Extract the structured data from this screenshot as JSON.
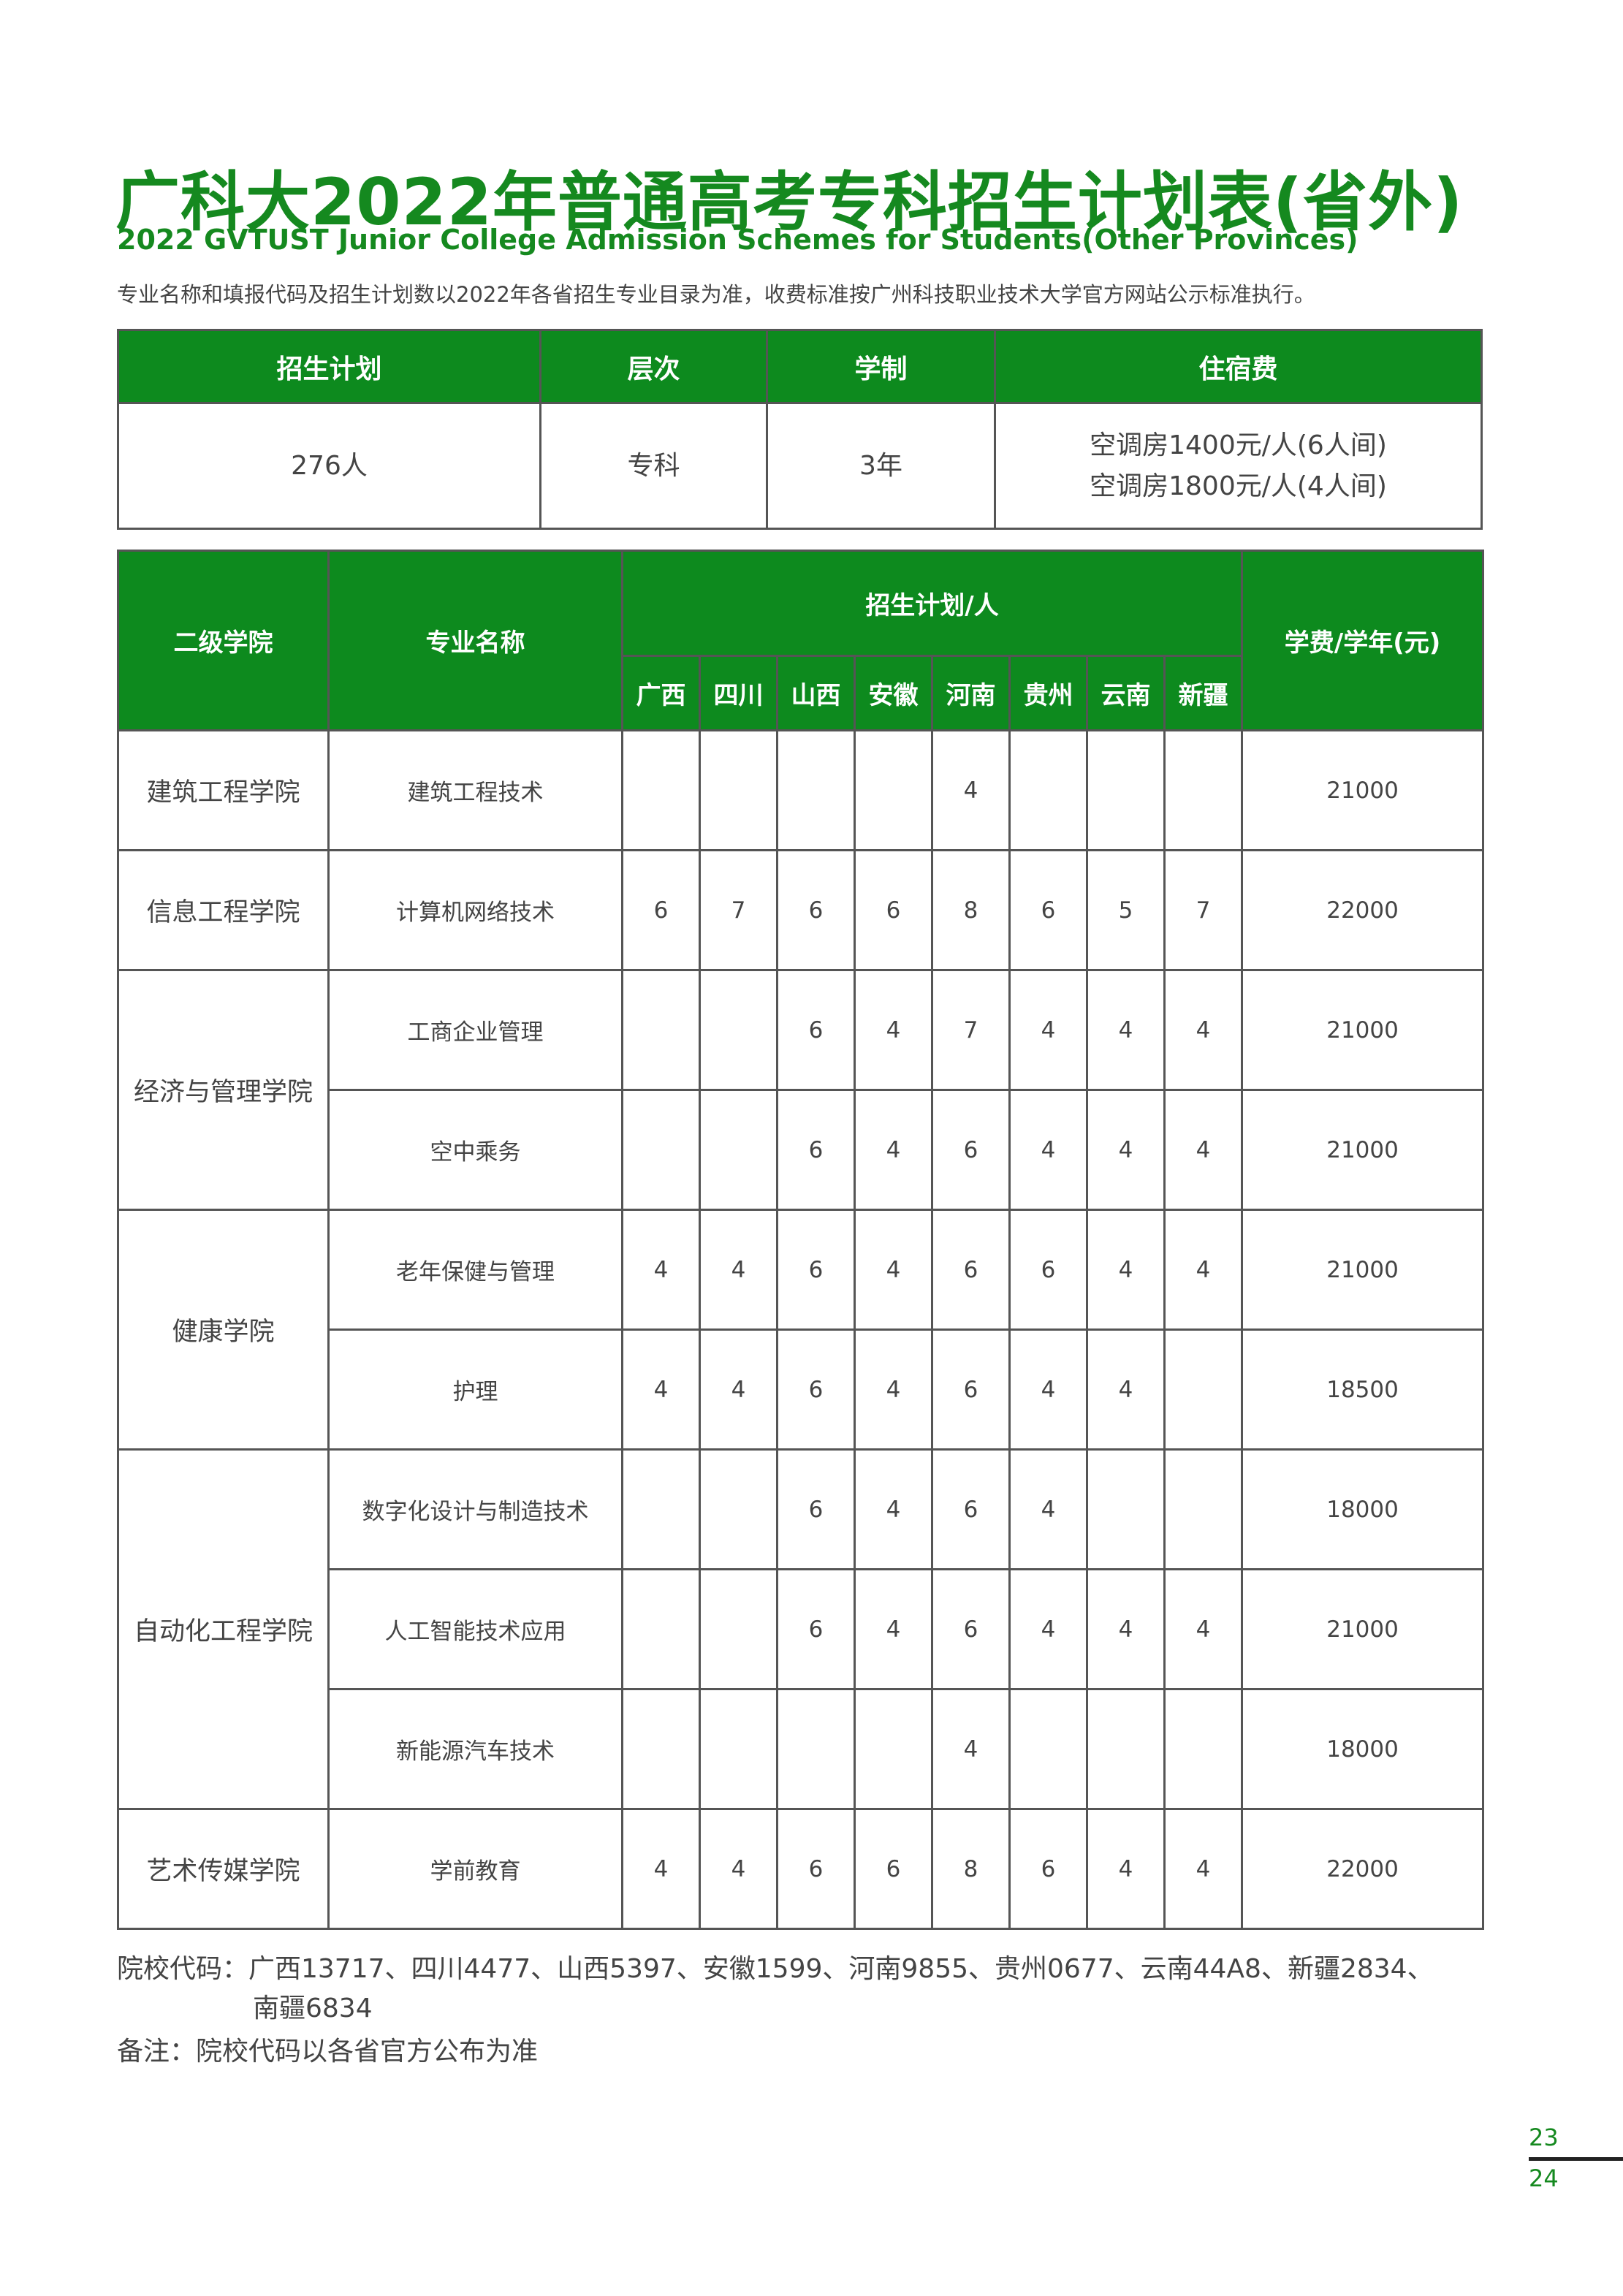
{
  "title": "广科大2022年普通高考专科招生计划表(省外)",
  "subtitle": "2022 GVTUST Junior College Admission Schemes for Students(Other Provinces)",
  "note": "专业名称和填报代码及招生计划数以2022年各省招生专业目录为准，收费标准按广州科技职业技术大学官方网站公示标准执行。",
  "summary": {
    "headers": [
      "招生计划",
      "层次",
      "学制",
      "住宿费"
    ],
    "values": {
      "plan": "276人",
      "level": "专科",
      "duration": "3年",
      "dorm1": "空调房1400元/人(6人间)",
      "dorm2": "空调房1800元/人(4人间)"
    }
  },
  "plan_table": {
    "headers": {
      "college": "二级学院",
      "major": "专业名称",
      "plan": "招生计划/人",
      "fee": "学费/学年(元)"
    },
    "provinces": [
      "广西",
      "四川",
      "山西",
      "安徽",
      "河南",
      "贵州",
      "云南",
      "新疆"
    ],
    "rows": [
      {
        "college": "建筑工程学院",
        "major": "建筑工程技术",
        "counts": [
          "",
          "",
          "",
          "",
          "4",
          "",
          "",
          ""
        ],
        "fee": "21000"
      },
      {
        "college": "信息工程学院",
        "major": "计算机网络技术",
        "counts": [
          "6",
          "7",
          "6",
          "6",
          "8",
          "6",
          "5",
          "7"
        ],
        "fee": "22000"
      },
      {
        "college": "经济与管理学院",
        "major": "工商企业管理",
        "counts": [
          "",
          "",
          "6",
          "4",
          "7",
          "4",
          "4",
          "4"
        ],
        "fee": "21000"
      },
      {
        "college": "",
        "major": "空中乘务",
        "counts": [
          "",
          "",
          "6",
          "4",
          "6",
          "4",
          "4",
          "4"
        ],
        "fee": "21000"
      },
      {
        "college": "健康学院",
        "major": "老年保健与管理",
        "counts": [
          "4",
          "4",
          "6",
          "4",
          "6",
          "6",
          "4",
          "4"
        ],
        "fee": "21000"
      },
      {
        "college": "",
        "major": "护理",
        "counts": [
          "4",
          "4",
          "6",
          "4",
          "6",
          "4",
          "4",
          ""
        ],
        "fee": "18500"
      },
      {
        "college": "自动化工程学院",
        "major": "数字化设计与制造技术",
        "counts": [
          "",
          "",
          "6",
          "4",
          "6",
          "4",
          "",
          ""
        ],
        "fee": "18000"
      },
      {
        "college": "",
        "major": "人工智能技术应用",
        "counts": [
          "",
          "",
          "6",
          "4",
          "6",
          "4",
          "4",
          "4"
        ],
        "fee": "21000"
      },
      {
        "college": "",
        "major": "新能源汽车技术",
        "counts": [
          "",
          "",
          "",
          "",
          "4",
          "",
          "",
          ""
        ],
        "fee": "18000"
      },
      {
        "college": "艺术传媒学院",
        "major": "学前教育",
        "counts": [
          "4",
          "4",
          "6",
          "6",
          "8",
          "6",
          "4",
          "4"
        ],
        "fee": "22000"
      }
    ],
    "spans": [
      1,
      1,
      2,
      0,
      2,
      0,
      3,
      0,
      0,
      1
    ]
  },
  "codes_line1": "院校代码：广西13717、四川4477、山西5397、安徽1599、河南9855、贵州0677、云南44A8、新疆2834、",
  "codes_line2": "南疆6834",
  "remark": "备注：院校代码以各省官方公布为准",
  "page_numbers": [
    "23",
    "24"
  ],
  "colors": {
    "accent": "#0d8a1e",
    "text": "#444444"
  }
}
